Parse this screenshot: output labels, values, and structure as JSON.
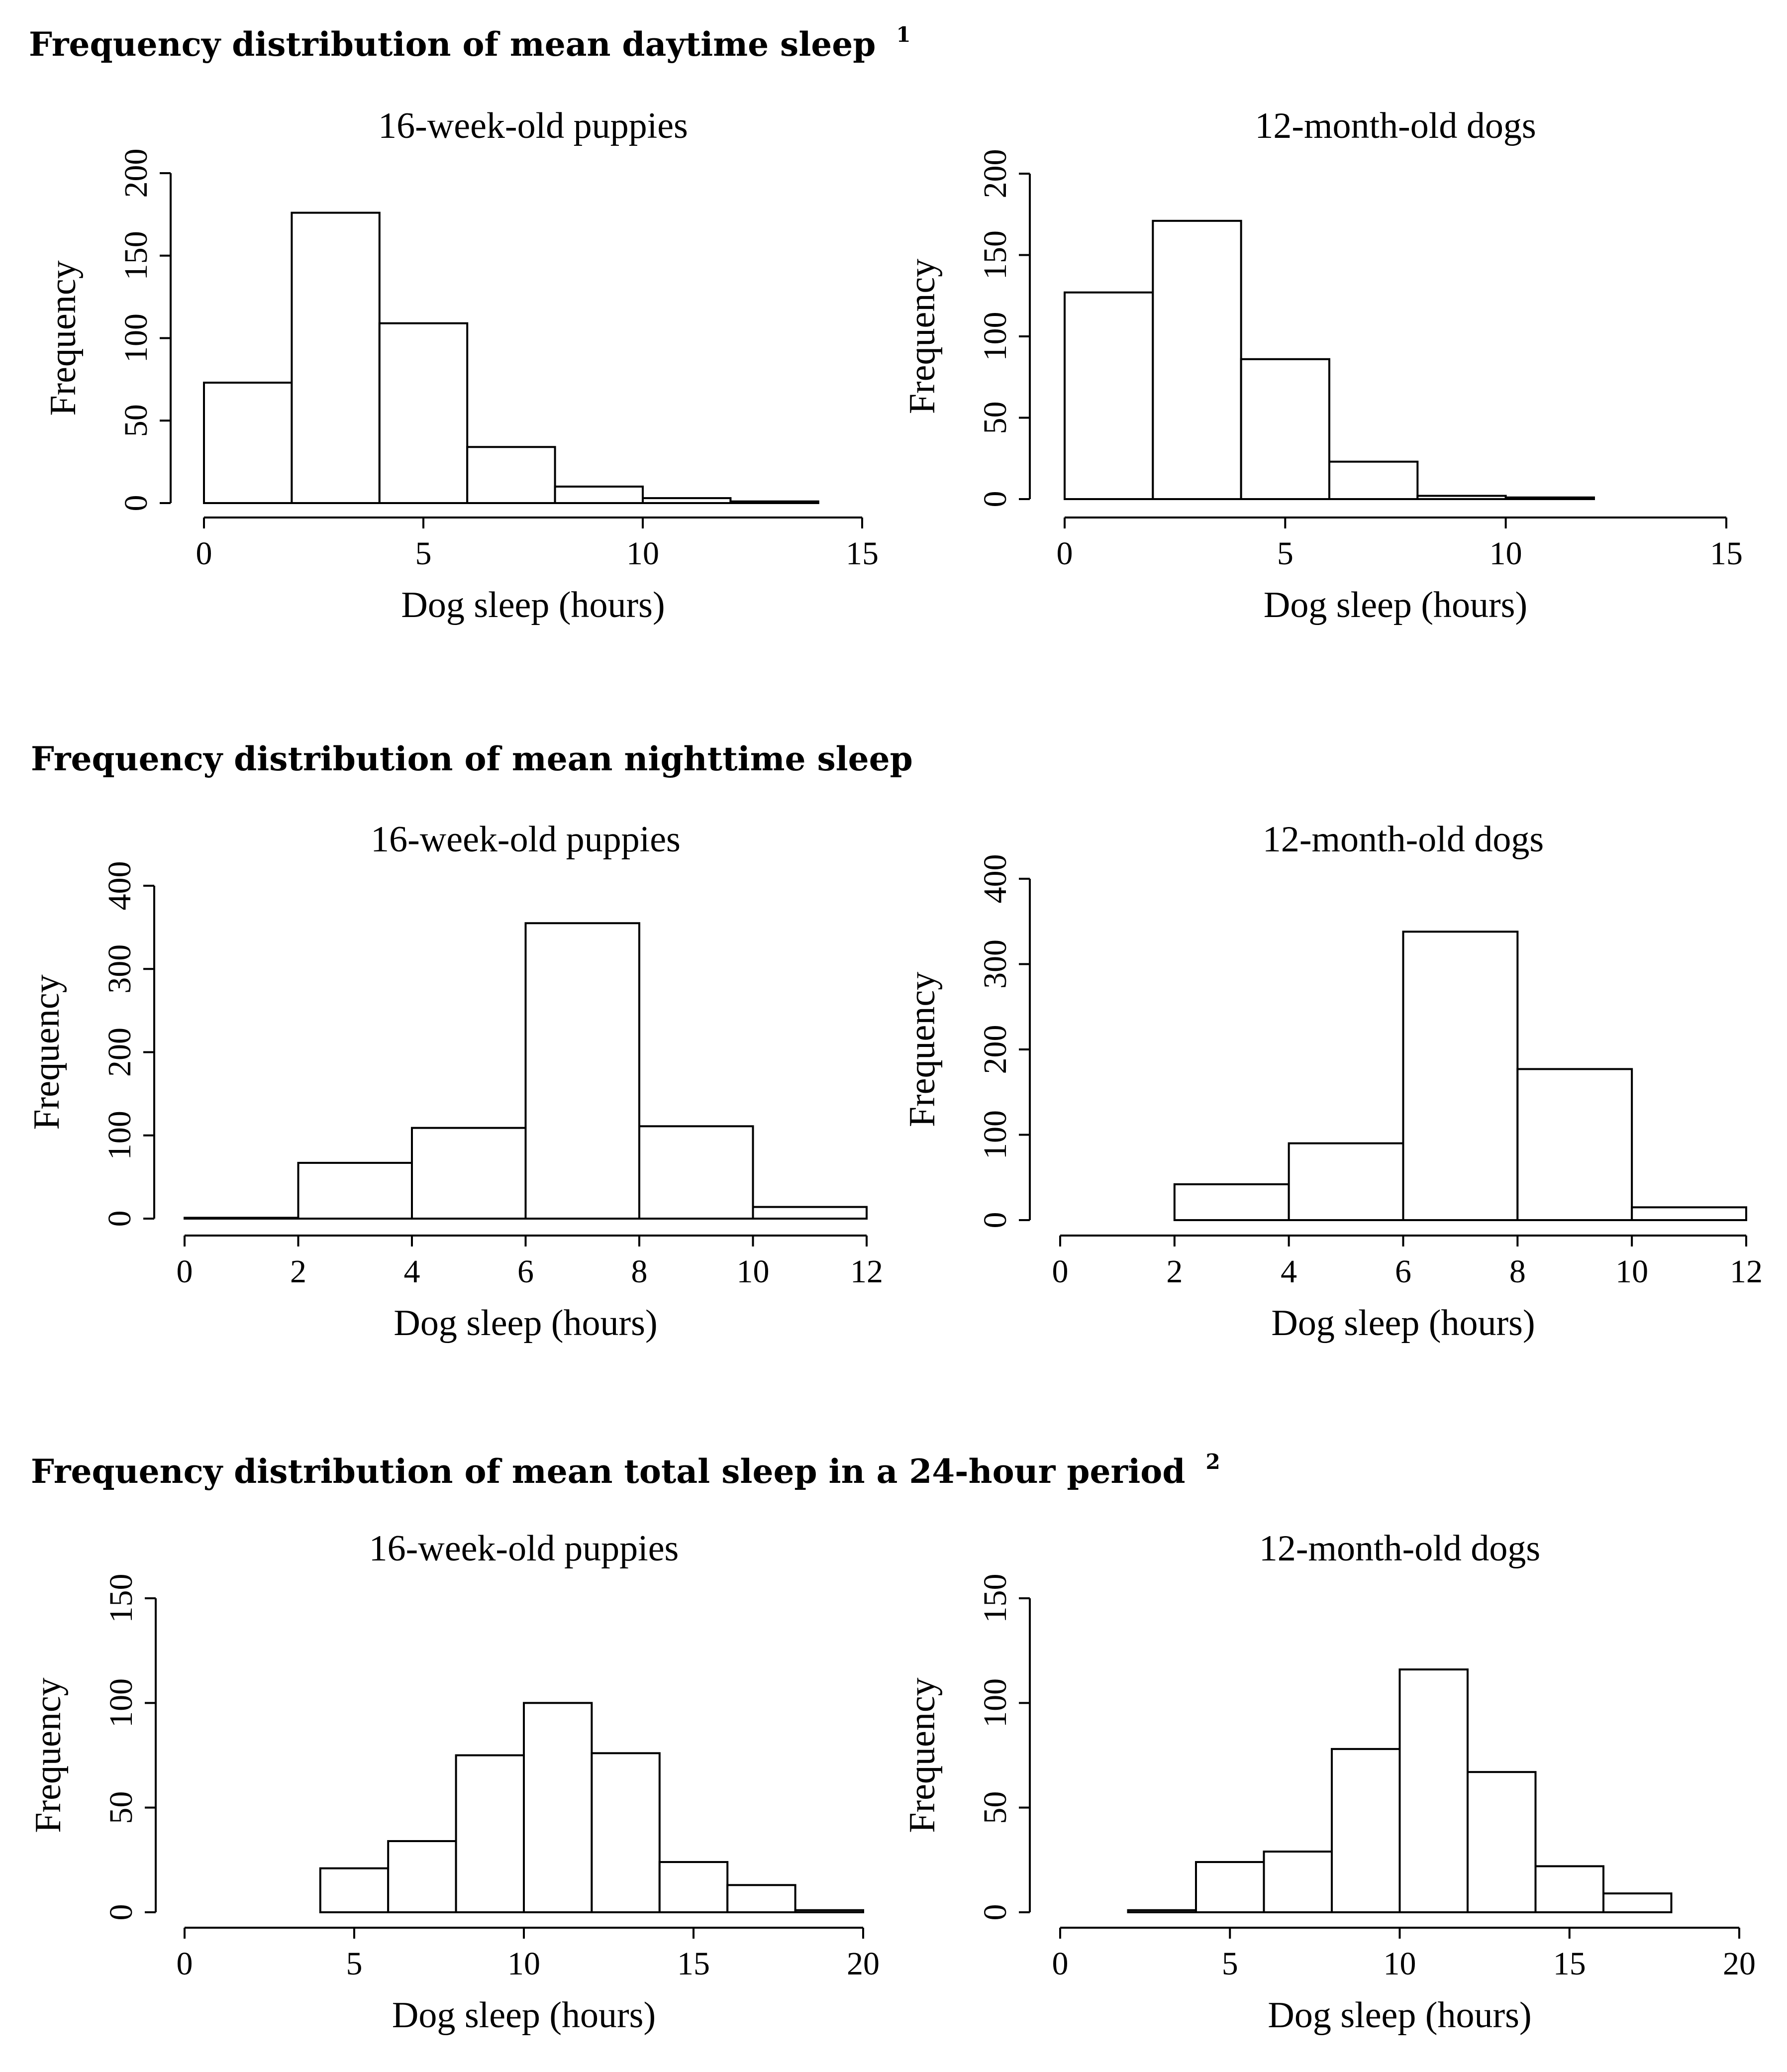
{
  "sections": [
    {
      "title": "Frequency distribution of mean daytime sleep",
      "superscript": "1"
    },
    {
      "title": "Frequency distribution of mean nighttime sleep",
      "superscript": ""
    },
    {
      "title": "Frequency distribution of mean total sleep in a 24-hour period",
      "superscript": "2"
    }
  ],
  "chart_data": [
    {
      "type": "bar",
      "section": 0,
      "title": "16-week-old puppies",
      "xlabel": "Dog sleep (hours)",
      "ylabel": "Frequency",
      "xlim": [
        0,
        15
      ],
      "xticks": [
        0,
        5,
        10,
        15
      ],
      "ylim": [
        0,
        200
      ],
      "yticks": [
        0,
        50,
        100,
        150,
        200
      ],
      "bins": [
        [
          0,
          2
        ],
        [
          2,
          4
        ],
        [
          4,
          6
        ],
        [
          6,
          8
        ],
        [
          8,
          10
        ],
        [
          10,
          12
        ],
        [
          12,
          14
        ]
      ],
      "values": [
        73,
        176,
        109,
        34,
        10,
        3,
        1
      ]
    },
    {
      "type": "bar",
      "section": 0,
      "title": "12-month-old dogs",
      "xlabel": "Dog sleep (hours)",
      "ylabel": "Frequency",
      "xlim": [
        0,
        15
      ],
      "xticks": [
        0,
        5,
        10,
        15
      ],
      "ylim": [
        0,
        200
      ],
      "yticks": [
        0,
        50,
        100,
        150,
        200
      ],
      "bins": [
        [
          0,
          2
        ],
        [
          2,
          4
        ],
        [
          4,
          6
        ],
        [
          6,
          8
        ],
        [
          8,
          10
        ],
        [
          10,
          12
        ]
      ],
      "values": [
        127,
        171,
        86,
        23,
        2,
        1
      ]
    },
    {
      "type": "bar",
      "section": 1,
      "title": "16-week-old puppies",
      "xlabel": "Dog sleep (hours)",
      "ylabel": "Frequency",
      "xlim": [
        0,
        12
      ],
      "xticks": [
        0,
        2,
        4,
        6,
        8,
        10,
        12
      ],
      "ylim": [
        0,
        400
      ],
      "yticks": [
        0,
        100,
        200,
        300,
        400
      ],
      "bins": [
        [
          0,
          2
        ],
        [
          2,
          4
        ],
        [
          4,
          6
        ],
        [
          6,
          8
        ],
        [
          8,
          10
        ],
        [
          10,
          12
        ]
      ],
      "values": [
        1,
        67,
        109,
        355,
        111,
        14
      ]
    },
    {
      "type": "bar",
      "section": 1,
      "title": "12-month-old dogs",
      "xlabel": "Dog sleep (hours)",
      "ylabel": "Frequency",
      "xlim": [
        0,
        12
      ],
      "xticks": [
        0,
        2,
        4,
        6,
        8,
        10,
        12
      ],
      "ylim": [
        0,
        400
      ],
      "yticks": [
        0,
        100,
        200,
        300,
        400
      ],
      "bins": [
        [
          2,
          4
        ],
        [
          4,
          6
        ],
        [
          6,
          8
        ],
        [
          8,
          10
        ],
        [
          10,
          12
        ]
      ],
      "values": [
        42,
        90,
        338,
        177,
        15
      ]
    },
    {
      "type": "bar",
      "section": 2,
      "title": "16-week-old puppies",
      "xlabel": "Dog sleep (hours)",
      "ylabel": "Frequency",
      "xlim": [
        0,
        20
      ],
      "xticks": [
        0,
        5,
        10,
        15,
        20
      ],
      "ylim": [
        0,
        150
      ],
      "yticks": [
        0,
        50,
        100,
        150
      ],
      "bins": [
        [
          4,
          6
        ],
        [
          6,
          8
        ],
        [
          8,
          10
        ],
        [
          10,
          12
        ],
        [
          12,
          14
        ],
        [
          14,
          16
        ],
        [
          16,
          18
        ],
        [
          18,
          20
        ]
      ],
      "values": [
        21,
        34,
        75,
        100,
        76,
        24,
        13,
        1
      ]
    },
    {
      "type": "bar",
      "section": 2,
      "title": "12-month-old dogs",
      "xlabel": "Dog sleep (hours)",
      "ylabel": "Frequency",
      "xlim": [
        0,
        20
      ],
      "xticks": [
        0,
        5,
        10,
        15,
        20
      ],
      "ylim": [
        0,
        150
      ],
      "yticks": [
        0,
        50,
        100,
        150
      ],
      "bins": [
        [
          2,
          4
        ],
        [
          4,
          6
        ],
        [
          6,
          8
        ],
        [
          8,
          10
        ],
        [
          10,
          12
        ],
        [
          12,
          14
        ],
        [
          14,
          16
        ],
        [
          16,
          18
        ]
      ],
      "values": [
        1,
        24,
        29,
        78,
        116,
        67,
        22,
        9
      ]
    }
  ]
}
